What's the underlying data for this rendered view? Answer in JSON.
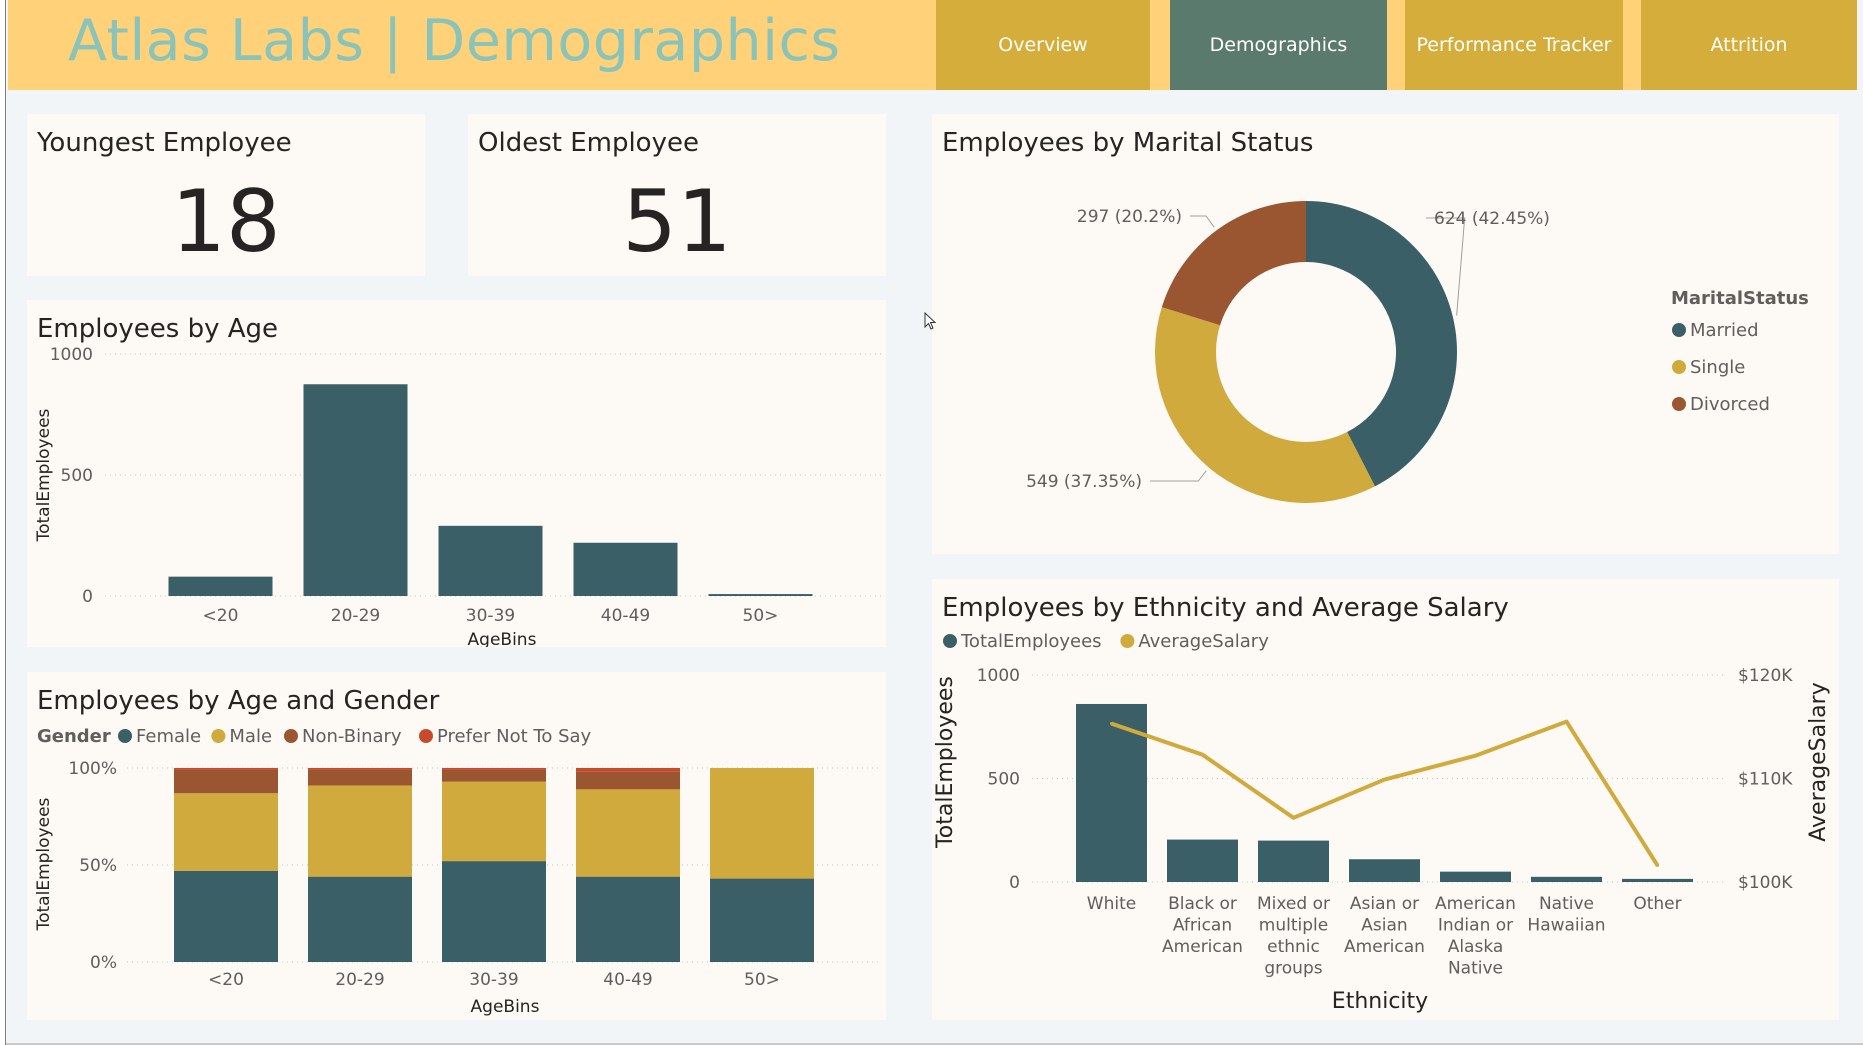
{
  "header": {
    "title": "Atlas Labs | Demographics",
    "tabs": [
      {
        "label": "Overview",
        "active": false
      },
      {
        "label": "Demographics",
        "active": true
      },
      {
        "label": "Performance Tracker",
        "active": false
      },
      {
        "label": "Attrition",
        "active": false
      }
    ]
  },
  "colors": {
    "teal": "#3b5f66",
    "gold": "#d1aa3d",
    "rust": "#9a5531",
    "red": "#c84a2c",
    "card_bg": "#fdf9f5",
    "header_bg": "#ffd27a",
    "tab_bg": "#d4ad3a",
    "tab_active_bg": "#5b7a6e",
    "title_color": "#8bc3b9"
  },
  "kpis": {
    "youngest": {
      "label": "Youngest Employee",
      "value": "18"
    },
    "oldest": {
      "label": "Oldest Employee",
      "value": "51"
    }
  },
  "chart_data": [
    {
      "id": "employees-by-age",
      "type": "bar",
      "title": "Employees by Age",
      "xlabel": "AgeBins",
      "ylabel": "TotalEmployees",
      "categories": [
        "<20",
        "20-29",
        "30-39",
        "40-49",
        "50>"
      ],
      "values": [
        80,
        875,
        290,
        220,
        8
      ],
      "ylim": [
        0,
        1000
      ],
      "yticks": [
        {
          "value": 0,
          "label": "0"
        },
        {
          "value": 500,
          "label": "500"
        },
        {
          "value": 1000,
          "label": "1000"
        }
      ],
      "grid": true
    },
    {
      "id": "employees-by-age-and-gender",
      "type": "bar",
      "stacked": "percent",
      "title": "Employees by Age and Gender",
      "legend_title": "Gender",
      "xlabel": "AgeBins",
      "ylabel": "TotalEmployees",
      "categories": [
        "<20",
        "20-29",
        "30-39",
        "40-49",
        "50>"
      ],
      "series": [
        {
          "name": "Female",
          "color": "#3b5f66",
          "values": [
            47,
            44,
            52,
            44,
            43
          ]
        },
        {
          "name": "Male",
          "color": "#d1aa3d",
          "values": [
            40,
            47,
            41,
            45,
            57
          ]
        },
        {
          "name": "Non-Binary",
          "color": "#9a5531",
          "values": [
            12,
            8,
            6,
            9,
            0
          ]
        },
        {
          "name": "Prefer Not To Say",
          "color": "#c84a2c",
          "values": [
            1,
            1,
            1,
            2,
            0
          ]
        }
      ],
      "ylim": [
        0,
        100
      ],
      "yticks": [
        {
          "value": 0,
          "label": "0%"
        },
        {
          "value": 50,
          "label": "50%"
        },
        {
          "value": 100,
          "label": "100%"
        }
      ],
      "grid": true
    },
    {
      "id": "employees-by-marital-status",
      "type": "pie",
      "donut": true,
      "title": "Employees by Marital Status",
      "legend_title": "MaritalStatus",
      "legend_position": "right",
      "slices": [
        {
          "name": "Married",
          "value": 624,
          "label": "624 (42.45%)",
          "color": "#3b5f66"
        },
        {
          "name": "Single",
          "value": 549,
          "label": "549 (37.35%)",
          "color": "#d1aa3d"
        },
        {
          "name": "Divorced",
          "value": 297,
          "label": "297 (20.2%)",
          "color": "#9a5531"
        }
      ]
    },
    {
      "id": "employees-by-ethnicity-and-salary",
      "type": "bar",
      "combo": "bar-line",
      "title": "Employees by Ethnicity and Average Salary",
      "xlabel": "Ethnicity",
      "ylabel": "TotalEmployees",
      "y2label": "AverageSalary",
      "categories": [
        [
          "White"
        ],
        [
          "Black or",
          "African",
          "American"
        ],
        [
          "Mixed or",
          "multiple",
          "ethnic",
          "groups"
        ],
        [
          "Asian or",
          "Asian",
          "American"
        ],
        [
          "American",
          "Indian or",
          "Alaska",
          "Native"
        ],
        [
          "Native",
          "Hawaiian"
        ],
        [
          "Other"
        ]
      ],
      "series": [
        {
          "name": "TotalEmployees",
          "type": "bar",
          "color": "#3b5f66",
          "values": [
            860,
            205,
            200,
            110,
            50,
            25,
            15
          ]
        },
        {
          "name": "AverageSalary",
          "type": "line",
          "color": "#d1aa3d",
          "values": [
            115300,
            112300,
            106200,
            109900,
            112200,
            115500,
            101600
          ]
        }
      ],
      "ylim": [
        0,
        1000
      ],
      "y2lim": [
        100000,
        120000
      ],
      "yticks": [
        {
          "value": 0,
          "label": "0"
        },
        {
          "value": 500,
          "label": "500"
        },
        {
          "value": 1000,
          "label": "1000"
        }
      ],
      "y2ticks": [
        {
          "value": 100000,
          "label": "$100K"
        },
        {
          "value": 110000,
          "label": "$110K"
        },
        {
          "value": 120000,
          "label": "$120K"
        }
      ],
      "legend_position": "top-left",
      "grid": true
    }
  ]
}
